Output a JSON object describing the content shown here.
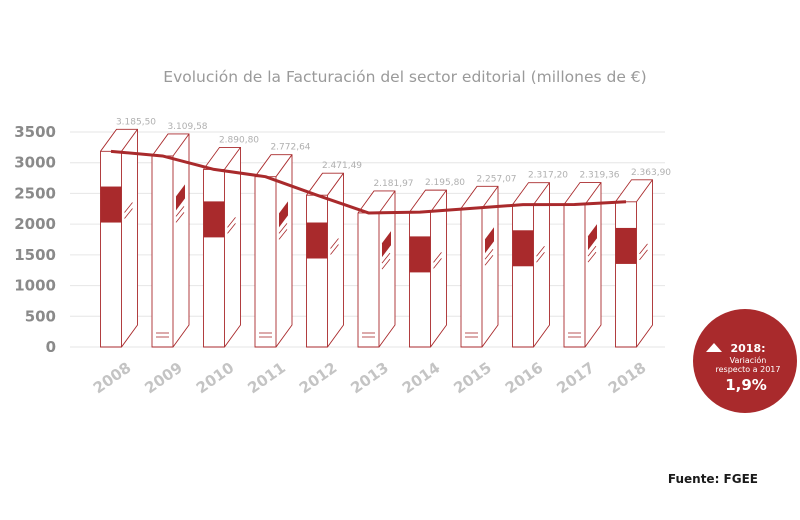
{
  "chart_data": {
    "type": "bar",
    "title": "Evolución de la Facturación del sector editorial (millones de €)",
    "categories": [
      "2008",
      "2009",
      "2010",
      "2011",
      "2012",
      "2013",
      "2014",
      "2015",
      "2016",
      "2017",
      "2018"
    ],
    "values": [
      3185.5,
      3109.58,
      2890.8,
      2772.64,
      2471.49,
      2181.97,
      2195.8,
      2257.07,
      2317.2,
      2319.36,
      2363.9
    ],
    "data_labels": [
      "3.185,50",
      "3.109,58",
      "2.890,80",
      "2.772,64",
      "2.471,49",
      "2.181,97",
      "2.195,80",
      "2.257,07",
      "2.317,20",
      "2.319,36",
      "2.363,90"
    ],
    "line_values": [
      3185.5,
      3109.58,
      2890.8,
      2772.64,
      2471.49,
      2181.97,
      2195.8,
      2257.07,
      2317.2,
      2319.36,
      2363.9
    ],
    "yticks": [
      "0",
      "500",
      "1000",
      "1500",
      "2000",
      "2500",
      "3000",
      "3500"
    ],
    "ylim": [
      0,
      3500
    ],
    "xlabel": "",
    "ylabel": "",
    "grid": true,
    "legend": "none",
    "colors": {
      "accent": "#a92a2c",
      "line": "#a92a2c",
      "grid": "#e6e6e6",
      "text": "#9a9a9a"
    }
  },
  "badge": {
    "year": "2018:",
    "text_line1": "Variación",
    "text_line2": "respecto a 2017",
    "value": "1,9%",
    "icon": "triangle-up-icon",
    "color": "#a92a2c"
  },
  "source": "Fuente: FGEE"
}
